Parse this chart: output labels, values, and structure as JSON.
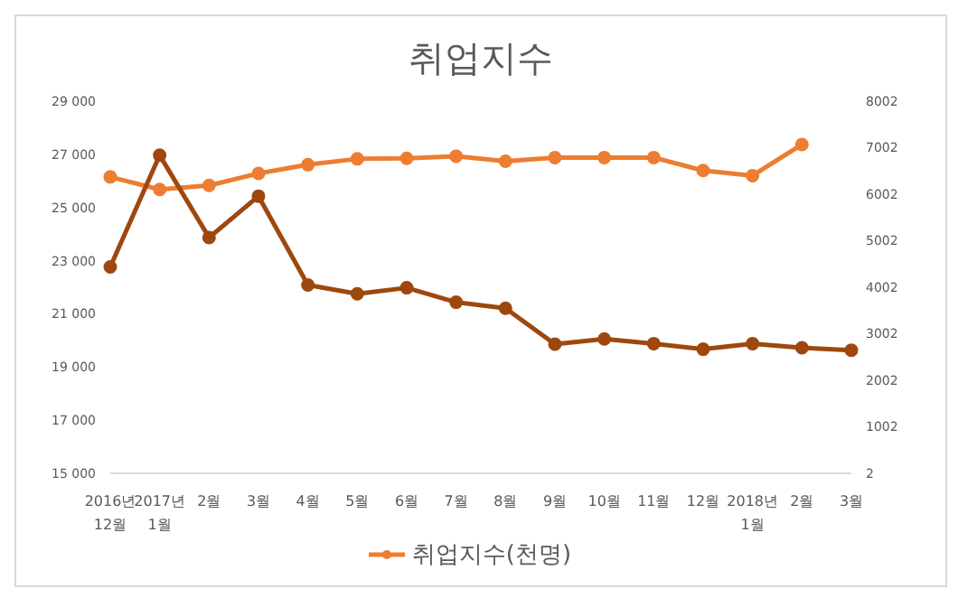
{
  "chart_data": {
    "type": "line",
    "title": "취업지수",
    "categories": [
      "2016년 12월",
      "2017년 1월",
      "2월",
      "3월",
      "4월",
      "5월",
      "6월",
      "7월",
      "8월",
      "9월",
      "10월",
      "11월",
      "12월",
      "2018년 1월",
      "2월",
      "3월"
    ],
    "series": [
      {
        "name": "취업지수(천명)",
        "color": "#ed7d31",
        "values": [
          26150,
          25680,
          25830,
          26280,
          26610,
          26830,
          26850,
          26930,
          26740,
          26880,
          26880,
          26880,
          26390,
          26200,
          27370,
          null
        ]
      },
      {
        "color": "#9e480e",
        "axis": "y2",
        "values": [
          4440,
          6840,
          5070,
          5960,
          4050,
          3860,
          3990,
          3680,
          3550,
          2780,
          2890,
          2790,
          2670,
          2790,
          2700,
          2650
        ]
      }
    ],
    "ylim": [
      15000,
      29000
    ],
    "yticks": [
      {
        "value": 15000,
        "label": "15 000"
      },
      {
        "value": 17000,
        "label": "17 000"
      },
      {
        "value": 19000,
        "label": "19 000"
      },
      {
        "value": 21000,
        "label": "21 000"
      },
      {
        "value": 23000,
        "label": "23 000"
      },
      {
        "value": 25000,
        "label": "25 000"
      },
      {
        "value": 27000,
        "label": "27 000"
      },
      {
        "value": 29000,
        "label": "29 000"
      }
    ],
    "y2lim": [
      2,
      8002
    ],
    "y2ticks": [
      2,
      1002,
      2002,
      3002,
      4002,
      5002,
      6002,
      7002,
      8002
    ],
    "grid": false,
    "legend": "bottom",
    "marker": "circle",
    "line_style": "solid"
  }
}
